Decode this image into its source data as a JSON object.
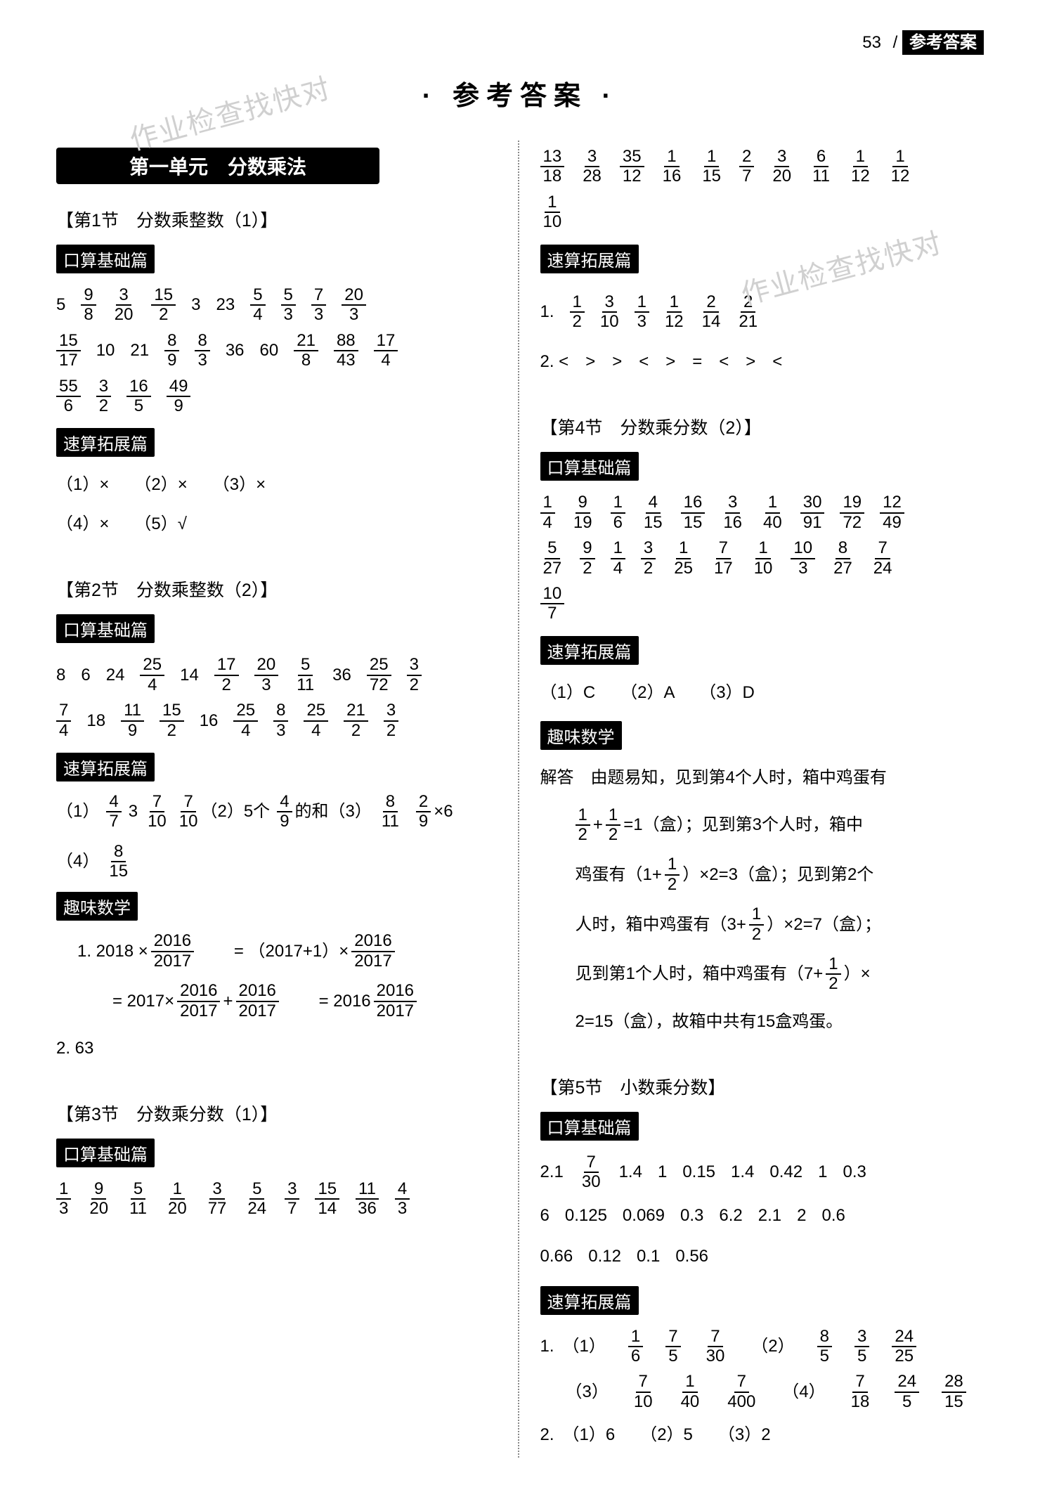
{
  "header": {
    "page_number": "53",
    "slash": "/",
    "label": "参考答案"
  },
  "main_title": "· 参考答案 ·",
  "watermark_text": "作业检查找快对",
  "unit_banner": "第一单元　分数乘法",
  "labels": {
    "basic": "口算基础篇",
    "expand": "速算拓展篇",
    "fun": "趣味数学"
  },
  "left": {
    "sec1": {
      "title": "【第1节　分数乘整数（1）】",
      "basic_rows": [
        [
          "5",
          "9/8",
          "3/20",
          "15/2",
          "3",
          "23",
          "5/4",
          "5/3",
          "7/3",
          "20/3"
        ],
        [
          "15/17",
          "10",
          "21",
          "8/9",
          "8/3",
          "36",
          "60",
          "21/8",
          "88/43",
          "17/4"
        ],
        [
          "55/6",
          "3/2",
          "16/5",
          "49/9"
        ]
      ],
      "expand_lines": [
        "（1）×　　（2）×　　（3）×",
        "（4）×　　（5）√"
      ]
    },
    "sec2": {
      "title": "【第2节　分数乘整数（2）】",
      "basic_rows": [
        [
          "8",
          "6",
          "24",
          "25/4",
          "14",
          "17/2",
          "20/3",
          "5/11",
          "36",
          "25/72",
          "3/2"
        ],
        [
          "7/4",
          "18",
          "11/9",
          "15/2",
          "16",
          "25/4",
          "8/3",
          "25/4",
          "21/2",
          "3/2"
        ]
      ],
      "expand_items": [
        {
          "label": "（1）",
          "vals": [
            "4/7",
            " 3 ",
            "7/10",
            "7/10"
          ]
        },
        {
          "label": "（2）5个",
          "vals": [
            "4/9"
          ],
          "tail": "的和"
        },
        {
          "label": "（3）",
          "vals": [
            "8/11",
            " ",
            "2/9"
          ],
          "tail": "×6"
        },
        {
          "label": "（4）",
          "vals": [
            "8/15"
          ]
        }
      ],
      "fun": {
        "l1": "1.  2018 ×",
        "l1f": "2016/2017",
        "l2a": "= （2017+1）×",
        "l2f": "2016/2017",
        "l3a": "= 2017×",
        "l3f1": "2016/2017",
        "l3mid": " + ",
        "l3f2": "2016/2017",
        "l4a": "= 2016",
        "l4f": "2016/2017",
        "l5": "2.  63"
      }
    },
    "sec3": {
      "title": "【第3节　分数乘分数（1）】",
      "basic_rows": [
        [
          "1/3",
          "9/20",
          "5/11",
          "1/20",
          "3/77",
          "5/24",
          "3/7",
          "15/14",
          "11/36",
          "4/3"
        ]
      ]
    }
  },
  "right": {
    "top_rows": [
      [
        "13/18",
        "3/28",
        "35/12",
        "1/16",
        "1/15",
        "2/7",
        "3/20",
        "6/11",
        "1/12",
        "1/12"
      ],
      [
        "1/10"
      ]
    ],
    "expand3": {
      "line1_label": "1.",
      "line1_vals": [
        "1/2",
        "3/10",
        "1/3",
        "1/12",
        "2/14",
        "2/21"
      ],
      "line2": "2.  <　>　>　<　>　=　<　>　<"
    },
    "sec4": {
      "title": "【第4节　分数乘分数（2）】",
      "basic_rows": [
        [
          "1/4",
          "9/19",
          "1/6",
          "4/15",
          "16/15",
          "3/16",
          "1/40",
          "30/91",
          "19/72",
          "12/49"
        ],
        [
          "5/27",
          "9/2",
          "1/4",
          "3/2",
          "1/25",
          "7/17",
          "1/10",
          "10/3",
          "8/27",
          "7/24"
        ],
        [
          "10/7"
        ]
      ],
      "expand_line": "（1）C　　（2）A　　（3）D",
      "fun_lines": [
        "解答　由题易知，见到第4个人时，箱中鸡蛋有",
        {
          "pre": "",
          "f": "1/2",
          "mid": "+",
          "f2": "1/2",
          "post": "=1（盒）；见到第3个人时，箱中"
        },
        {
          "pre": "鸡蛋有（1+",
          "f": "1/2",
          "post": "）×2=3（盒）；见到第2个"
        },
        {
          "pre": "人时，箱中鸡蛋有（3+",
          "f": "1/2",
          "post": "）×2=7（盒）；"
        },
        {
          "pre": "见到第1个人时，箱中鸡蛋有（7+",
          "f": "1/2",
          "post": "）×"
        },
        "2=15（盒），故箱中共有15盒鸡蛋。"
      ]
    },
    "sec5": {
      "title": "【第5节　小数乘分数】",
      "basic_rows_mixed": [
        {
          "items": [
            "2.1",
            {
              "f": "7/30"
            },
            "1.4",
            "1",
            "0.15",
            "1.4",
            "0.42",
            "1",
            "0.3"
          ]
        },
        {
          "items": [
            "6",
            "0.125",
            "0.069",
            "0.3",
            "6.2",
            "2.1",
            "2",
            "0.6"
          ]
        },
        {
          "items": [
            "0.66",
            "0.12",
            "0.1",
            "0.56"
          ]
        }
      ],
      "expand": {
        "line1": [
          {
            "label": "1.　（1）",
            "vals": [
              "1/6",
              "7/5",
              "7/30"
            ]
          },
          {
            "label": "　（2）",
            "vals": [
              "8/5",
              "3/5",
              "24/25"
            ]
          }
        ],
        "line2": [
          {
            "label": "　　（3）",
            "vals": [
              "7/10",
              "1/40",
              "7/400"
            ]
          },
          {
            "label": "　（4）",
            "vals": [
              "7/18",
              "24/5",
              "28/15"
            ]
          }
        ],
        "line3": "2.　（1）6　　（2）5　　（3）2"
      }
    }
  }
}
